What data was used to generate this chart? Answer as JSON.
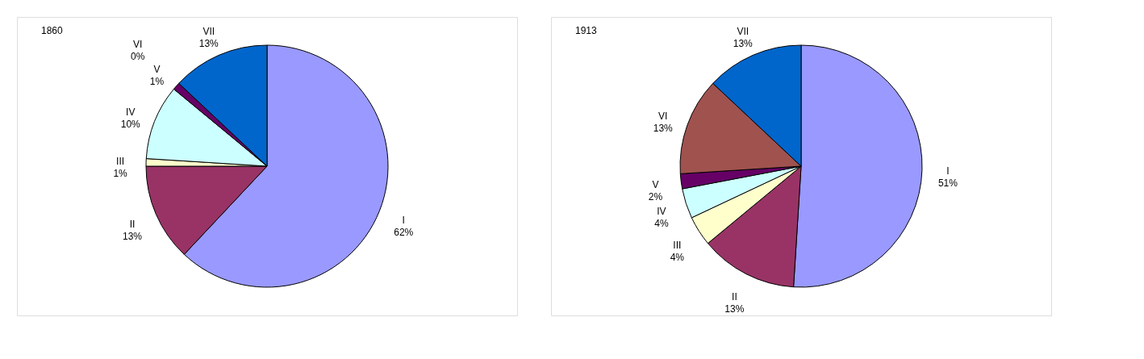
{
  "chart_data": [
    {
      "type": "pie",
      "title": "1860",
      "categories": [
        "I",
        "II",
        "III",
        "IV",
        "V",
        "VI",
        "VII"
      ],
      "values": [
        62,
        13,
        1,
        10,
        1,
        0,
        13
      ],
      "value_labels": [
        "62%",
        "13%",
        "1%",
        "10%",
        "1%",
        "0%",
        "13%"
      ],
      "colors": [
        "#9999ff",
        "#993366",
        "#ffffcc",
        "#ccffff",
        "#660066",
        "#a0524f",
        "#0066cc"
      ]
    },
    {
      "type": "pie",
      "title": "1913",
      "categories": [
        "I",
        "II",
        "III",
        "IV",
        "V",
        "VI",
        "VII"
      ],
      "values": [
        51,
        13,
        4,
        4,
        2,
        13,
        13
      ],
      "value_labels": [
        "51%",
        "13%",
        "4%",
        "4%",
        "2%",
        "13%",
        "13%"
      ],
      "colors": [
        "#9999ff",
        "#993366",
        "#ffffcc",
        "#ccffff",
        "#660066",
        "#a0524f",
        "#0066cc"
      ]
    }
  ]
}
